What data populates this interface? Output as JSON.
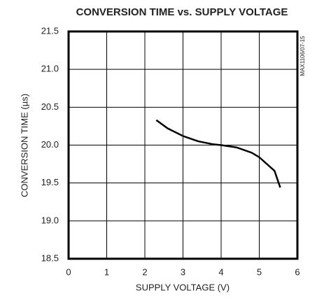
{
  "chart_data": {
    "type": "line",
    "title": "CONVERSION TIME vs. SUPPLY VOLTAGE",
    "x_label": "SUPPLY VOLTAGE (V)",
    "y_label": "CONVERSION TIME (µs)",
    "annotation": "MAX1106/07-15",
    "x": [
      2.3,
      2.6,
      3.0,
      3.4,
      3.8,
      4.0,
      4.4,
      4.8,
      5.0,
      5.2,
      5.4,
      5.55
    ],
    "series": [
      {
        "color": "#000000",
        "values": [
          20.33,
          20.22,
          20.12,
          20.05,
          20.01,
          20.0,
          19.97,
          19.9,
          19.84,
          19.75,
          19.66,
          19.44
        ]
      }
    ],
    "xlim": [
      0,
      6
    ],
    "xticks": [
      0,
      1,
      2,
      3,
      4,
      5,
      6
    ],
    "ylim": [
      18.5,
      21.5
    ],
    "yticks": [
      18.5,
      {
        "value": 19,
        "label": "19.0"
      },
      19.5,
      {
        "value": 20,
        "label": "20.0"
      },
      20.5,
      {
        "value": 21,
        "label": "21.0"
      },
      21.5
    ],
    "grid": true
  }
}
